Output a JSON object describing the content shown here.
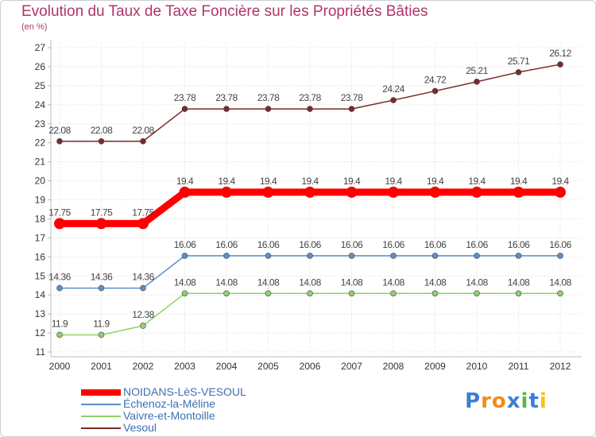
{
  "chart_data": {
    "type": "line",
    "title": "Evolution du Taux de Taxe Foncière sur les Propriétés Bâties",
    "unit_label": "(en %)",
    "ylim": [
      11,
      27
    ],
    "yticks": [
      "11",
      "12",
      "13",
      "14",
      "15",
      "16",
      "17",
      "18",
      "19",
      "20",
      "21",
      "22",
      "23",
      "24",
      "25",
      "26",
      "27"
    ],
    "categories": [
      "2000",
      "2001",
      "2002",
      "2003",
      "2004",
      "2005",
      "2006",
      "2007",
      "2008",
      "2009",
      "2010",
      "2011",
      "2012"
    ],
    "series": [
      {
        "name": "Vesoul",
        "color": "#7a2a2a",
        "values": [
          22.08,
          22.08,
          22.08,
          23.78,
          23.78,
          23.78,
          23.78,
          23.78,
          24.24,
          24.72,
          25.21,
          25.71,
          26.12
        ],
        "labels": [
          "22.08",
          "22.08",
          "22.08",
          "23.78",
          "23.78",
          "23.78",
          "23.78",
          "23.78",
          "24.24",
          "24.72",
          "25.21",
          "25.71",
          "26.12"
        ]
      },
      {
        "name": "Échenoz-la-Méline",
        "color": "#5b8fc7",
        "values": [
          14.36,
          14.36,
          14.36,
          16.06,
          16.06,
          16.06,
          16.06,
          16.06,
          16.06,
          16.06,
          16.06,
          16.06,
          16.06
        ],
        "labels": [
          "14.36",
          "14.36",
          "14.36",
          "16.06",
          "16.06",
          "16.06",
          "16.06",
          "16.06",
          "16.06",
          "16.06",
          "16.06",
          "16.06",
          "16.06"
        ]
      },
      {
        "name": "Vaivre-et-Montoille",
        "color": "#8fd16a",
        "values": [
          11.9,
          11.9,
          12.38,
          14.08,
          14.08,
          14.08,
          14.08,
          14.08,
          14.08,
          14.08,
          14.08,
          14.08,
          14.08
        ],
        "labels": [
          "11.9",
          "11.9",
          "12.38",
          "14.08",
          "14.08",
          "14.08",
          "14.08",
          "14.08",
          "14.08",
          "14.08",
          "14.08",
          "14.08",
          "14.08"
        ]
      },
      {
        "name": "NOIDANS-LèS-VESOUL",
        "color": "#ff0000",
        "values": [
          17.75,
          17.75,
          17.75,
          19.4,
          19.4,
          19.4,
          19.4,
          19.4,
          19.4,
          19.4,
          19.4,
          19.4,
          19.4
        ],
        "labels": [
          "17.75",
          "17.75",
          "17.75",
          "19.4",
          "19.4",
          "19.4",
          "19.4",
          "19.4",
          "19.4",
          "19.4",
          "19.4",
          "19.4",
          "19.4"
        ]
      }
    ],
    "legend": [
      {
        "name": "NOIDANS-LèS-VESOUL",
        "color": "#ff0000"
      },
      {
        "name": "Échenoz-la-Méline",
        "color": "#5b8fc7"
      },
      {
        "name": "Vaivre-et-Montoille",
        "color": "#8fd16a"
      },
      {
        "name": "Vesoul",
        "color": "#7a2a2a"
      }
    ]
  },
  "logo": {
    "text": "Proxiti"
  }
}
